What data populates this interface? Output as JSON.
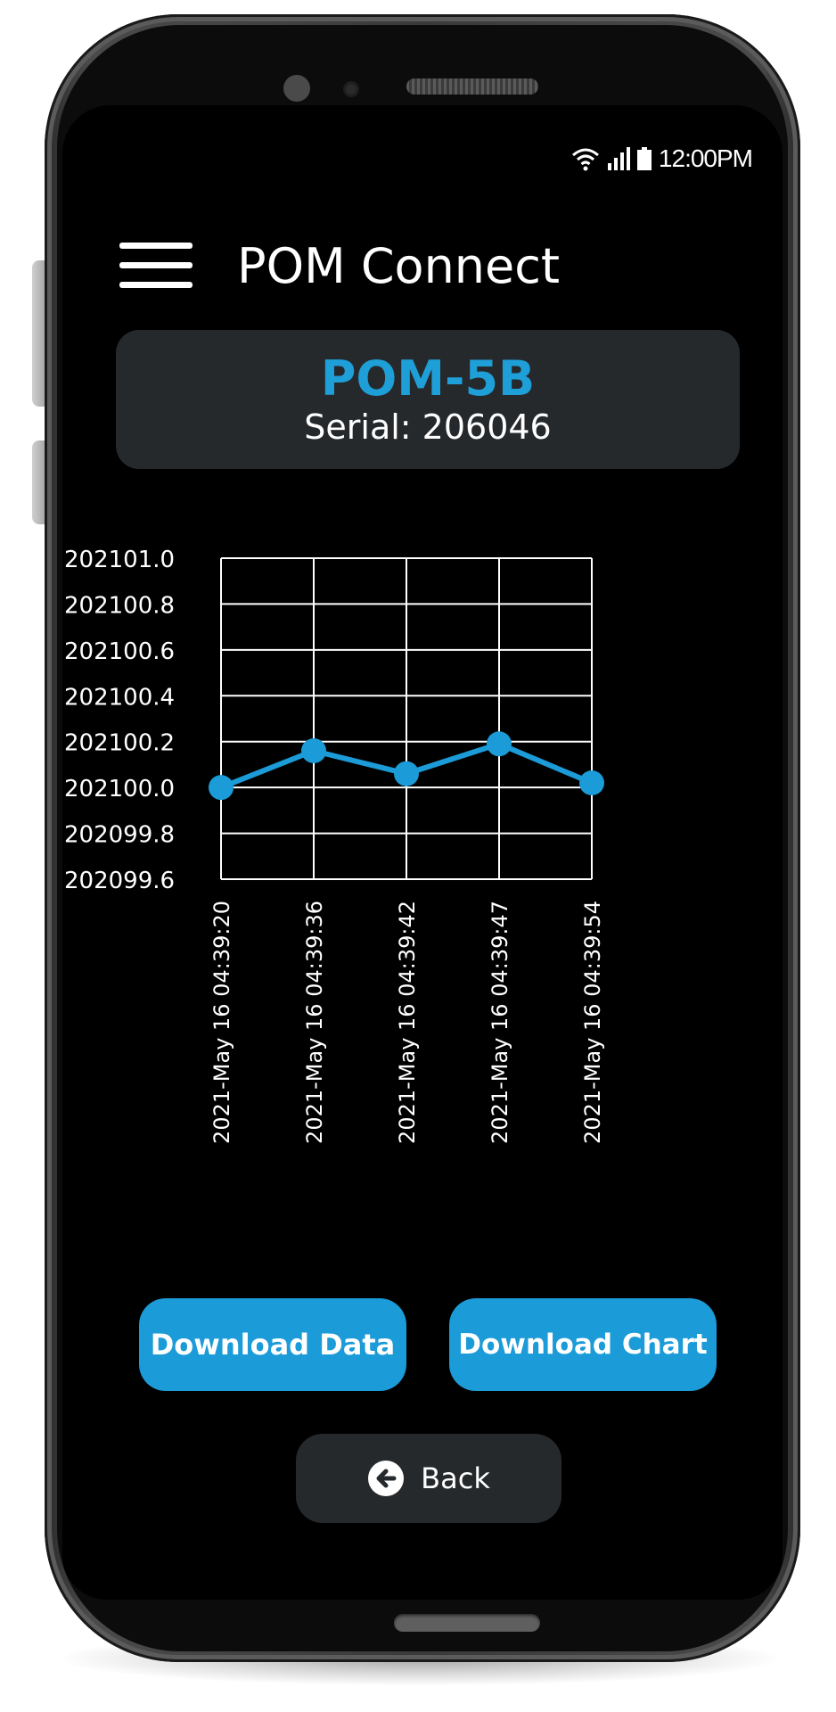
{
  "status_bar": {
    "time": "12:00PM"
  },
  "header": {
    "title": "POM Connect",
    "menu_icon": "hamburger-menu-icon"
  },
  "device": {
    "model": "POM-5B",
    "serial": "Serial: 206046"
  },
  "chart_data": {
    "type": "line",
    "x": [
      "2021-May 16 04:39:20",
      "2021-May 16 04:39:36",
      "2021-May 16 04:39:42",
      "2021-May 16 04:39:47",
      "2021-May 16 04:39:54"
    ],
    "series": [
      {
        "values": [
          202100.0,
          202100.16,
          202100.06,
          202100.19,
          202100.02
        ]
      }
    ],
    "ylim": [
      202099.6,
      202101.0
    ],
    "yticks": [
      "202101.0",
      "202100.8",
      "202100.6",
      "202100.4",
      "202100.2",
      "202100.0",
      "202099.8",
      "202099.6"
    ],
    "grid": true,
    "colors": {
      "line": "#1b9bd7",
      "grid": "#ffffff"
    }
  },
  "actions": {
    "download_data": "Download Data",
    "download_chart": "Download Chart",
    "back": "Back",
    "back_icon": "arrow-left-circle-icon"
  },
  "colors": {
    "accent": "#1b9bd7",
    "card": "#26292c",
    "screen": "#000000"
  }
}
